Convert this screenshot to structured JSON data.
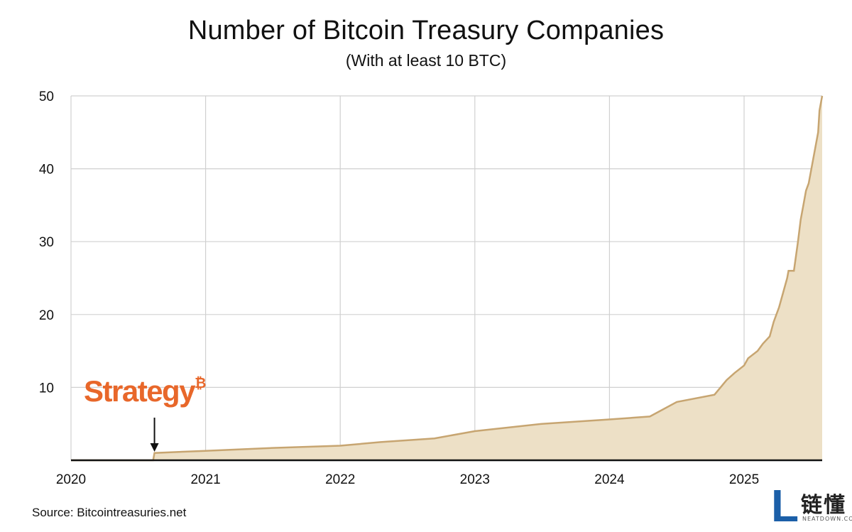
{
  "title": "Number of Bitcoin Treasury Companies",
  "subtitle": "(With at least 10 BTC)",
  "source": "Source: Bitcointreasuries.net",
  "annotation": {
    "label": "Strategy",
    "symbol": "₿",
    "date": 2020.62
  },
  "watermark": {
    "letter": "L",
    "chinese": "链懂",
    "english": "NEATDOWN.COM"
  },
  "colors": {
    "fill": "#ede0c6",
    "line": "#c7a571",
    "grid": "#d0d0d0",
    "axis": "#111111",
    "brand": "#e8672a"
  },
  "chart_data": {
    "type": "area",
    "title": "Number of Bitcoin Treasury Companies",
    "subtitle": "(With at least 10 BTC)",
    "xlabel": "",
    "ylabel": "",
    "xlim": [
      2020,
      2025.58
    ],
    "ylim": [
      0,
      50
    ],
    "yticks": [
      10,
      20,
      30,
      40,
      50
    ],
    "xticks": [
      2020,
      2021,
      2022,
      2023,
      2024,
      2025
    ],
    "x": [
      2020.0,
      2020.61,
      2020.62,
      2021.0,
      2021.5,
      2022.0,
      2022.3,
      2022.7,
      2023.0,
      2023.5,
      2024.0,
      2024.3,
      2024.5,
      2024.78,
      2024.87,
      2024.93,
      2025.0,
      2025.03,
      2025.1,
      2025.14,
      2025.19,
      2025.22,
      2025.26,
      2025.29,
      2025.32,
      2025.33,
      2025.37,
      2025.4,
      2025.42,
      2025.44,
      2025.46,
      2025.48,
      2025.5,
      2025.51,
      2025.52,
      2025.55,
      2025.56,
      2025.58
    ],
    "values": [
      0,
      0,
      1,
      1.3,
      1.7,
      2,
      2.5,
      3,
      4,
      5,
      5.6,
      6,
      8,
      9,
      11,
      12,
      13,
      14,
      15,
      16,
      17,
      19,
      21,
      23,
      25,
      26,
      26,
      30,
      33,
      35,
      37,
      38,
      40,
      41,
      42,
      45,
      48,
      50
    ]
  }
}
